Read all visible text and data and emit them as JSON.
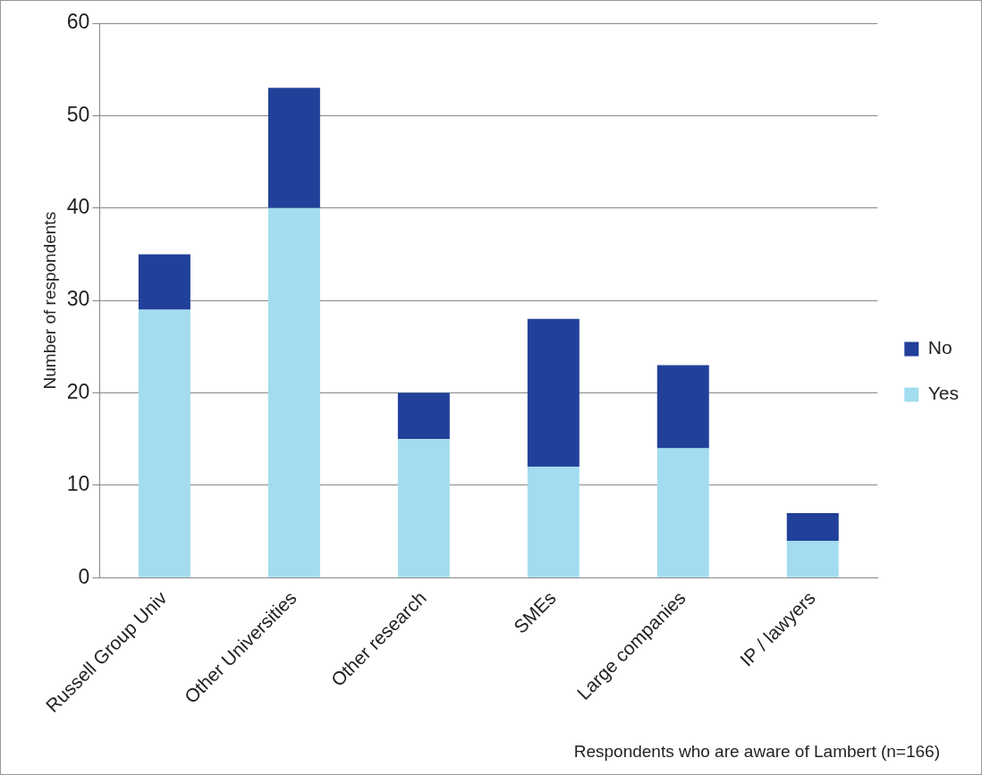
{
  "chart_data": {
    "type": "bar",
    "stacked": true,
    "ylabel": "Number of respondents",
    "categories": [
      "Russell Group Univ",
      "Other Universities",
      "Other research",
      "SMEs",
      "Large companies",
      "IP / lawyers"
    ],
    "series": [
      {
        "name": "Yes",
        "color": "#a3dcef",
        "values": [
          29,
          40,
          15,
          12,
          14,
          4
        ]
      },
      {
        "name": "No",
        "color": "#21409a",
        "values": [
          6,
          13,
          5,
          16,
          9,
          3
        ]
      }
    ],
    "ylim": [
      0,
      60
    ],
    "yticks": [
      0,
      10,
      20,
      30,
      40,
      50,
      60
    ],
    "grid": "y",
    "legend": "right",
    "annotations": [
      "Respondents who are aware of Lambert (n=166)"
    ]
  }
}
